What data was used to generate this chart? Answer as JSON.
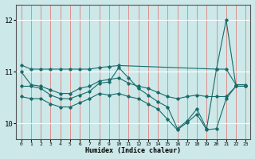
{
  "xlabel": "Humidex (Indice chaleur)",
  "bg_color": "#cce8e8",
  "grid_color_v": "#e08080",
  "grid_color_h": "#ffffff",
  "line_color": "#1a6b6b",
  "xlim": [
    -0.5,
    23.5
  ],
  "ylim": [
    9.7,
    12.3
  ],
  "yticks": [
    10,
    11,
    12
  ],
  "xticks": [
    0,
    1,
    2,
    3,
    4,
    5,
    6,
    7,
    8,
    9,
    10,
    11,
    12,
    13,
    14,
    15,
    16,
    17,
    18,
    19,
    20,
    21,
    22,
    23
  ],
  "series": [
    {
      "x": [
        0,
        1,
        2,
        3,
        4,
        5,
        6,
        7,
        8,
        9,
        10,
        20,
        21,
        22,
        23
      ],
      "y": [
        11.13,
        11.05,
        11.05,
        11.05,
        11.05,
        11.05,
        11.05,
        11.05,
        11.08,
        11.1,
        11.12,
        11.05,
        11.05,
        10.75,
        10.75
      ]
    },
    {
      "x": [
        0,
        1,
        2,
        3,
        4,
        5,
        6,
        7,
        8,
        9,
        10,
        11,
        12,
        13,
        14,
        15,
        16,
        17,
        18,
        19,
        20,
        21,
        22,
        23
      ],
      "y": [
        11.0,
        10.75,
        10.72,
        10.65,
        10.58,
        10.58,
        10.68,
        10.72,
        10.82,
        10.85,
        10.88,
        10.78,
        10.72,
        10.68,
        10.6,
        10.52,
        10.48,
        10.52,
        10.55,
        10.52,
        10.52,
        10.52,
        10.72,
        10.72
      ]
    },
    {
      "x": [
        0,
        1,
        2,
        3,
        4,
        5,
        6,
        7,
        8,
        9,
        10,
        11,
        12,
        13,
        14,
        15,
        16,
        17,
        18,
        19,
        20,
        21,
        22,
        23
      ],
      "y": [
        10.72,
        10.72,
        10.68,
        10.55,
        10.48,
        10.48,
        10.55,
        10.62,
        10.78,
        10.8,
        11.08,
        10.88,
        10.68,
        10.55,
        10.42,
        10.32,
        9.9,
        10.05,
        10.28,
        9.9,
        11.05,
        12.0,
        10.72,
        10.72
      ]
    },
    {
      "x": [
        0,
        1,
        2,
        3,
        4,
        5,
        6,
        7,
        8,
        9,
        10,
        11,
        12,
        13,
        14,
        15,
        16,
        17,
        18,
        19,
        20,
        21,
        22,
        23
      ],
      "y": [
        10.52,
        10.48,
        10.48,
        10.38,
        10.32,
        10.32,
        10.4,
        10.48,
        10.58,
        10.55,
        10.58,
        10.52,
        10.48,
        10.38,
        10.28,
        10.08,
        9.88,
        10.02,
        10.18,
        9.88,
        9.9,
        10.48,
        10.72,
        10.72
      ]
    }
  ]
}
